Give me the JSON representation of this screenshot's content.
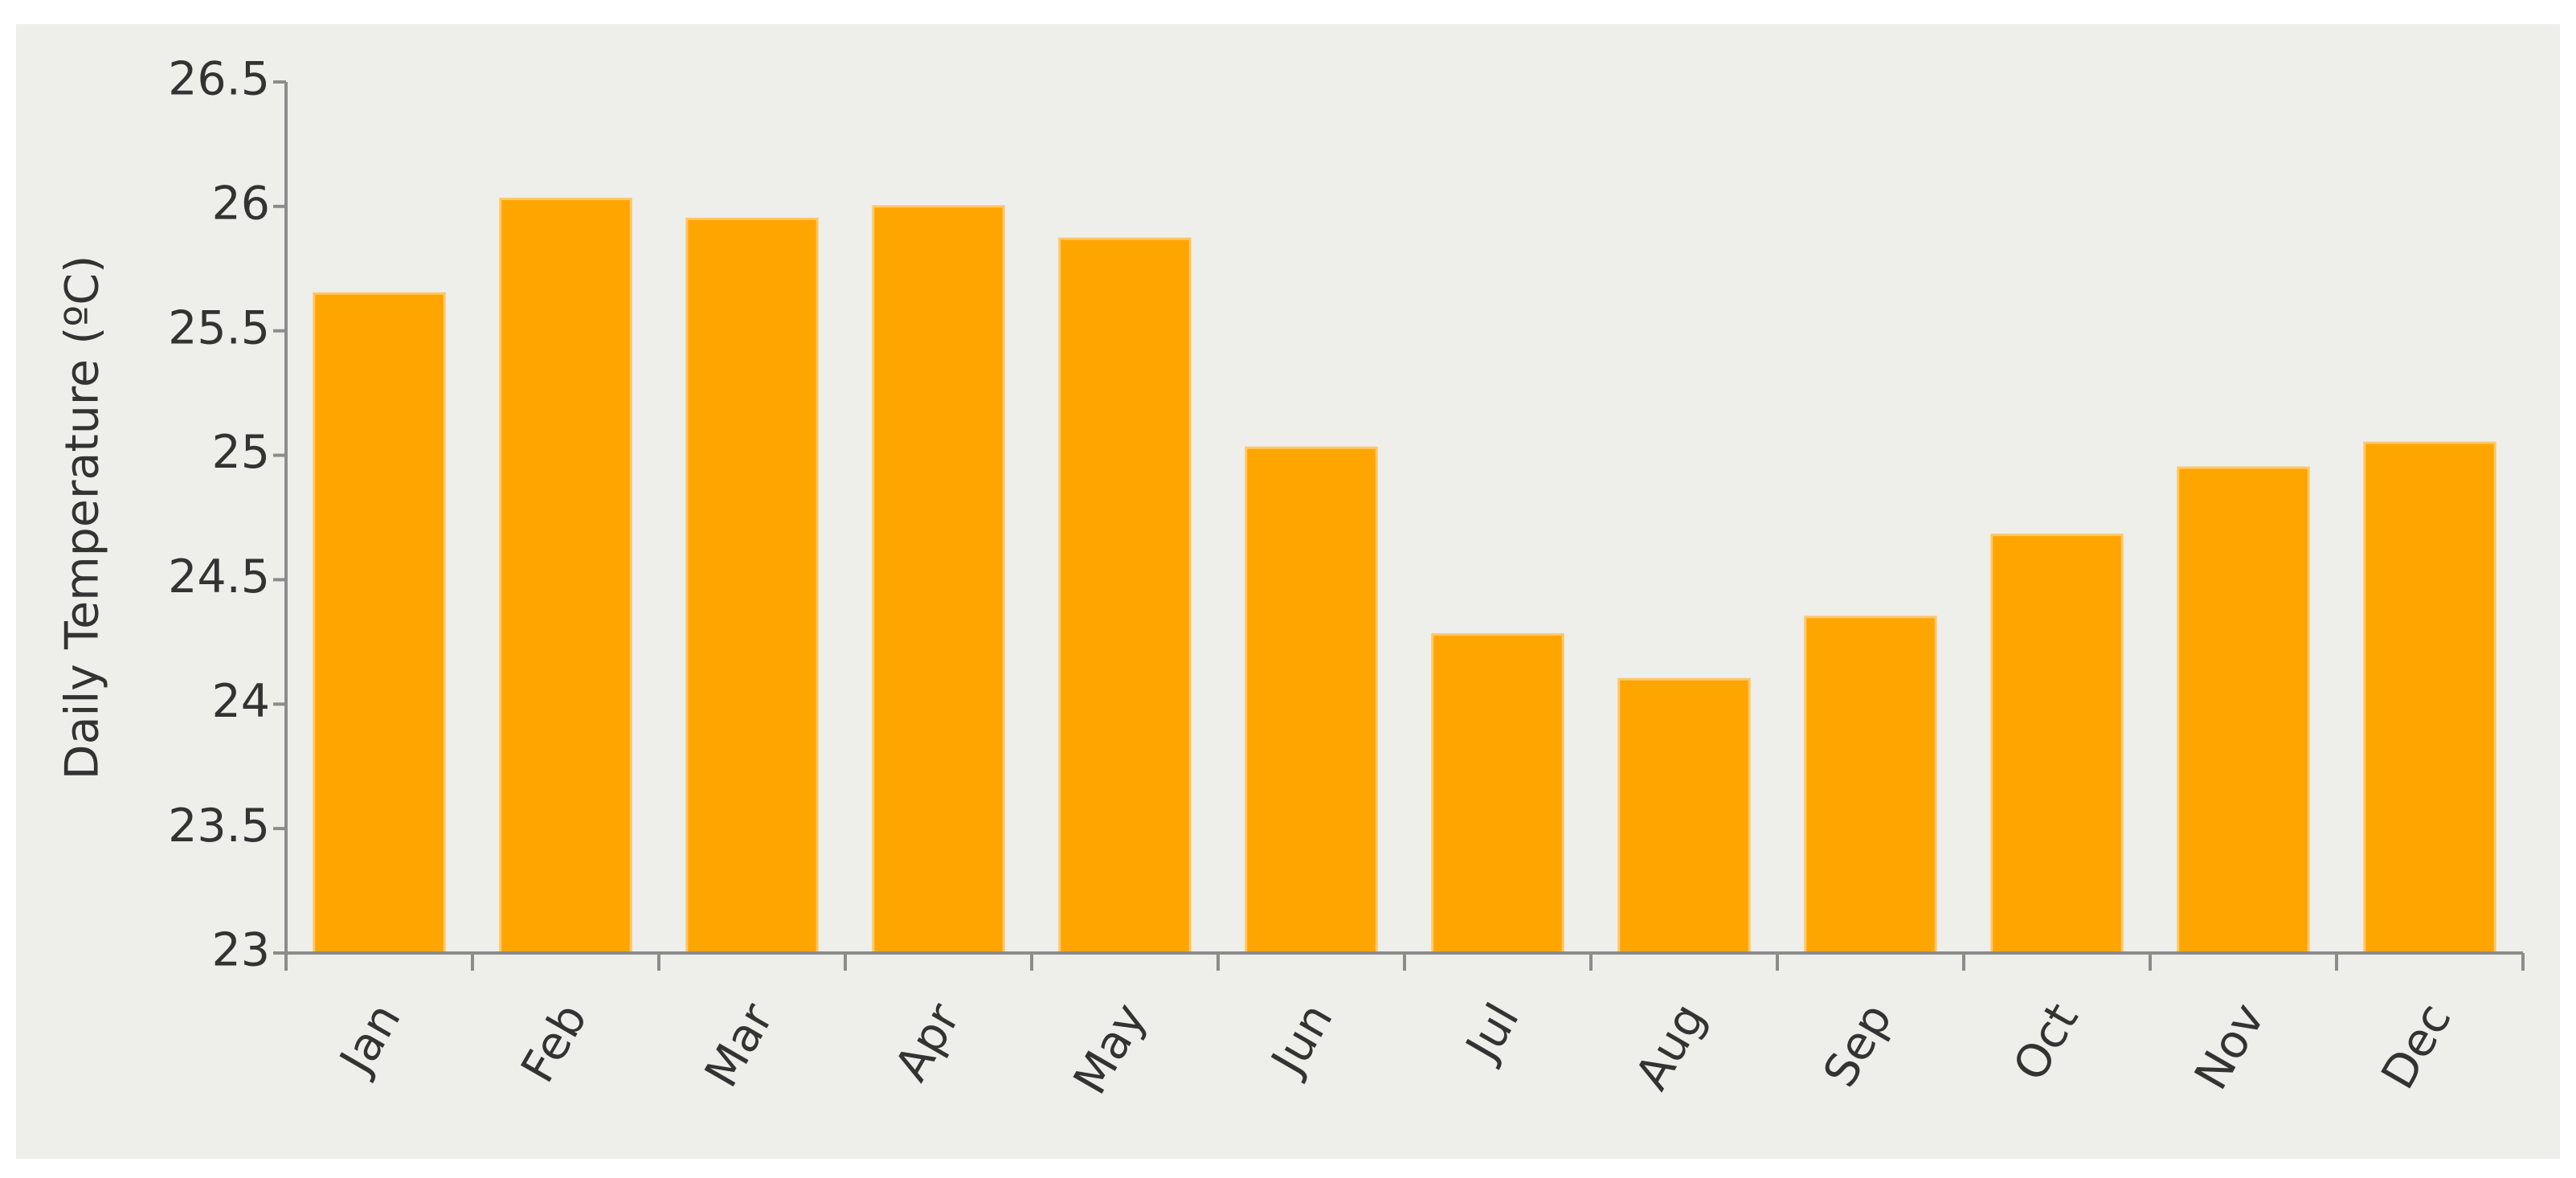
{
  "chart_data": {
    "type": "bar",
    "y_label": "Daily Temperature (ºC)",
    "categories": [
      "Jan",
      "Feb",
      "Mar",
      "Apr",
      "May",
      "Jun",
      "Jul",
      "Aug",
      "Sep",
      "Oct",
      "Nov",
      "Dec"
    ],
    "values": [
      25.65,
      26.03,
      25.95,
      26.0,
      25.87,
      25.03,
      24.28,
      24.1,
      24.35,
      24.68,
      24.95,
      25.05
    ],
    "color": "#ffa500",
    "ylim": [
      23,
      26.5
    ],
    "yticks": [
      23,
      23.5,
      24,
      24.5,
      25,
      25.5,
      26,
      26.5
    ],
    "grid": false
  }
}
